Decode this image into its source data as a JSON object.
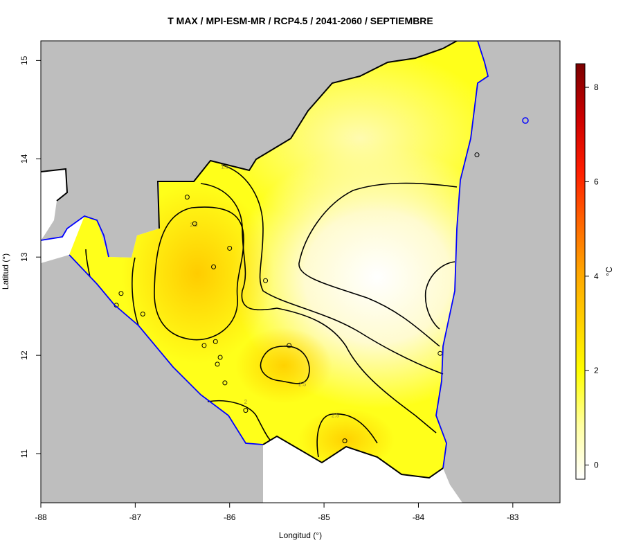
{
  "chart_data": {
    "type": "heatmap",
    "title": "T MAX / MPI-ESM-MR / RCP4.5 / 2041-2060 / SEPTIEMBRE",
    "xlabel": "Longitud (°)",
    "ylabel": "Latitud (°)",
    "xlim": [
      -88,
      -82.5
    ],
    "ylim": [
      10.5,
      15.2
    ],
    "x_ticks": [
      -88,
      -87,
      -86,
      -85,
      -84,
      -83
    ],
    "y_ticks": [
      11,
      12,
      13,
      14,
      15
    ],
    "colorbar": {
      "label": "°C",
      "range": [
        -0.3,
        8.5
      ],
      "ticks": [
        0,
        2,
        4,
        6,
        8
      ],
      "colors": [
        "#ffffff",
        "#ffff99",
        "#ffff00",
        "#ffd500",
        "#ffaa00",
        "#ff5500",
        "#ff0000",
        "#cc0000",
        "#7a0000"
      ]
    },
    "contour_labels": [
      {
        "lon": -86.05,
        "lat": 13.92,
        "text": "1.5"
      },
      {
        "lon": -86.38,
        "lat": 13.33,
        "text": "2.5"
      },
      {
        "lon": -85.23,
        "lat": 11.71,
        "text": "2.5"
      },
      {
        "lon": -85.83,
        "lat": 11.53,
        "text": "2"
      },
      {
        "lon": -84.88,
        "lat": 11.39,
        "text": "2.5"
      }
    ],
    "stations": [
      {
        "lon": -86.45,
        "lat": 13.61
      },
      {
        "lon": -86.37,
        "lat": 13.34
      },
      {
        "lon": -86.0,
        "lat": 13.09
      },
      {
        "lon": -86.17,
        "lat": 12.9
      },
      {
        "lon": -85.62,
        "lat": 12.76
      },
      {
        "lon": -87.15,
        "lat": 12.63
      },
      {
        "lon": -87.2,
        "lat": 12.51
      },
      {
        "lon": -86.92,
        "lat": 12.42
      },
      {
        "lon": -86.27,
        "lat": 12.1
      },
      {
        "lon": -86.15,
        "lat": 12.14
      },
      {
        "lon": -86.1,
        "lat": 11.98
      },
      {
        "lon": -86.13,
        "lat": 11.91
      },
      {
        "lon": -86.05,
        "lat": 11.72
      },
      {
        "lon": -85.37,
        "lat": 12.1
      },
      {
        "lon": -85.83,
        "lat": 11.44
      },
      {
        "lon": -84.78,
        "lat": 11.13
      },
      {
        "lon": -83.77,
        "lat": 12.02
      },
      {
        "lon": -83.38,
        "lat": 14.04
      }
    ]
  },
  "colors": {
    "land_gray": "#bebebe",
    "coastline": "#0000ff",
    "border": "#000000",
    "field_low": "#fffde0",
    "field_mid": "#ffff00",
    "field_high": "#ffd000"
  }
}
